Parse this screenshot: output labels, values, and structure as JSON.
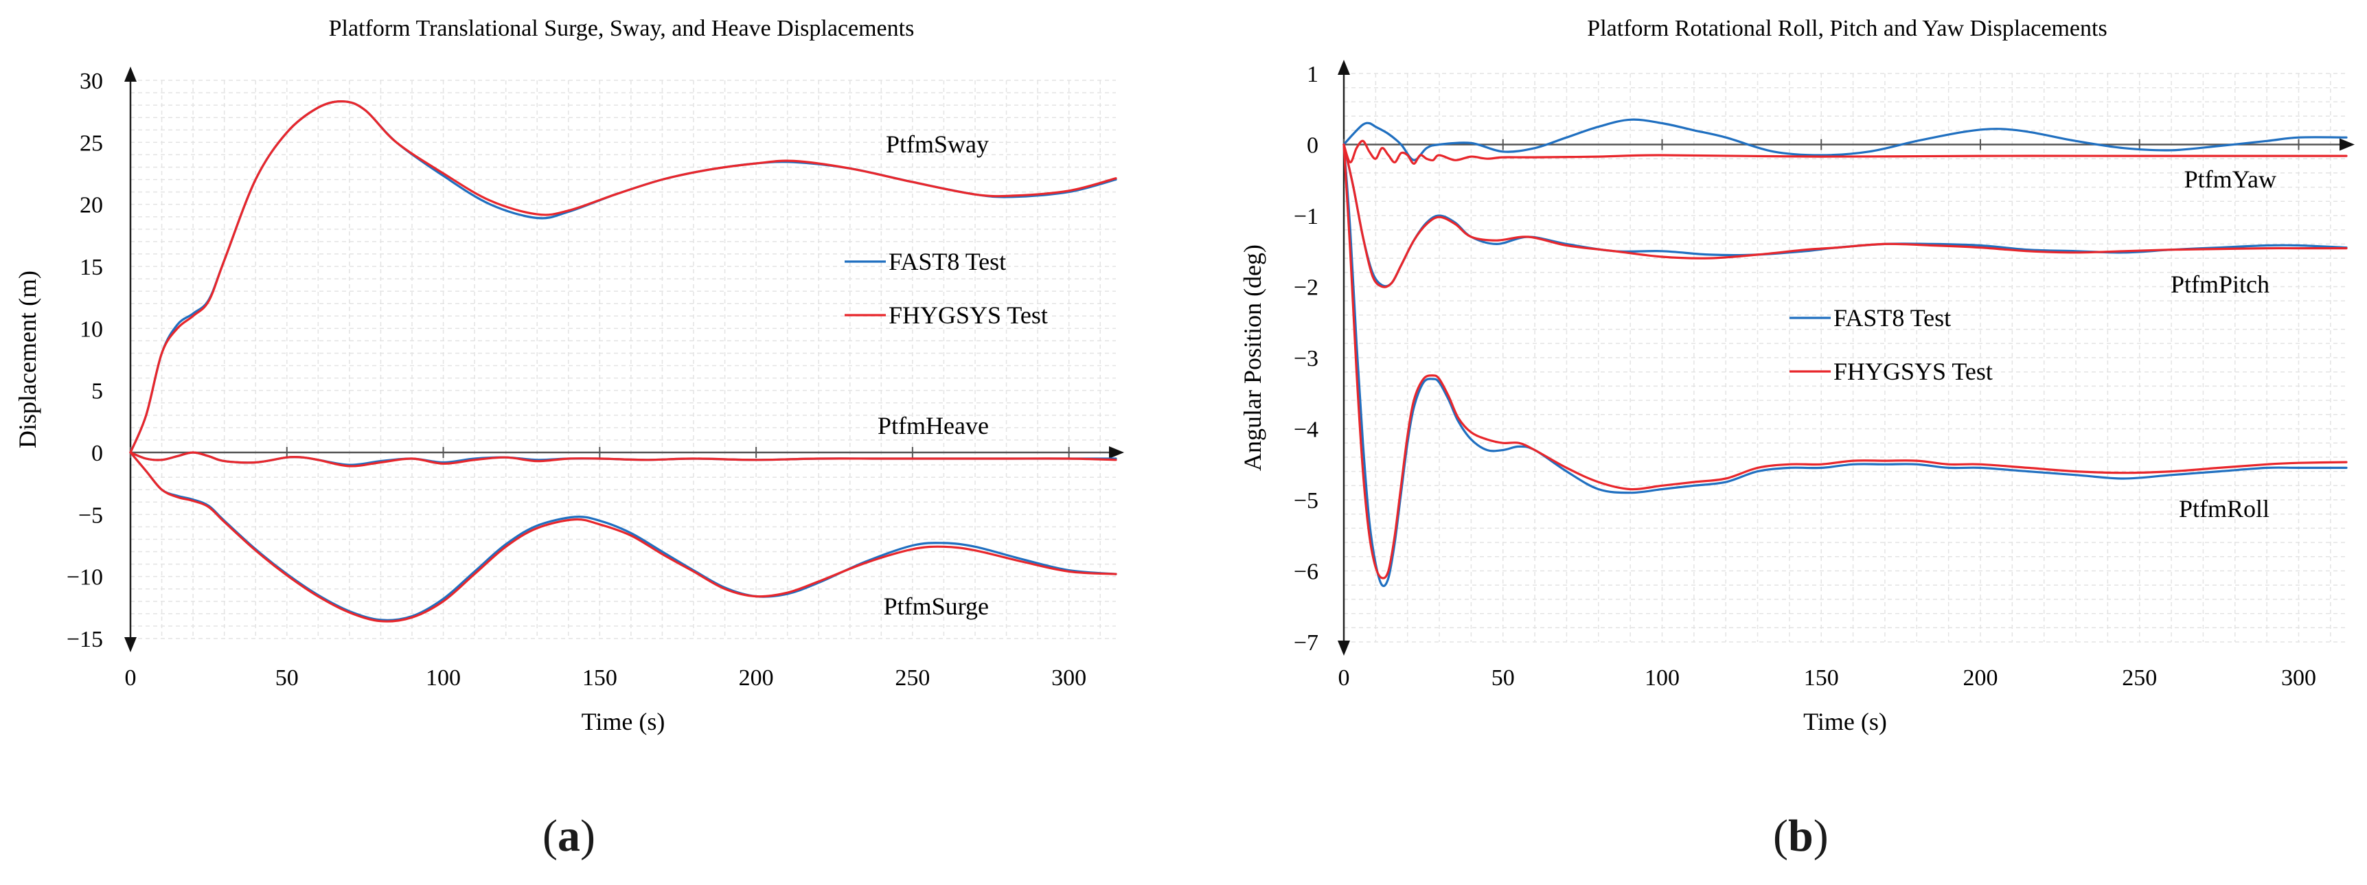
{
  "chart_data": [
    {
      "type": "line",
      "panel_label": "a",
      "title": "Platform Translational Surge, Sway, and Heave Displacements",
      "xlabel": "Time (s)",
      "ylabel": "Displacement (m)",
      "xlim": [
        0,
        315
      ],
      "ylim": [
        -15,
        30
      ],
      "xticks": [
        0,
        50,
        100,
        150,
        200,
        250,
        300
      ],
      "yticks": [
        -15,
        -10,
        -5,
        0,
        5,
        10,
        15,
        20,
        25,
        30
      ],
      "grid": true,
      "legend": {
        "placement": "center-right",
        "entries": [
          {
            "name": "FAST8 Test",
            "color": "#1f6fc0"
          },
          {
            "name": "FHYGSYS Test",
            "color": "#e8262b"
          }
        ]
      },
      "annotations": [
        "PtfmSway",
        "PtfmHeave",
        "PtfmSurge"
      ],
      "series": [
        {
          "name": "FAST8 Test",
          "label": "PtfmSway",
          "color": "#1f6fc0",
          "x": [
            0,
            5,
            10,
            15,
            20,
            25,
            30,
            40,
            50,
            60,
            68,
            75,
            85,
            100,
            115,
            130,
            140,
            155,
            170,
            185,
            200,
            212,
            230,
            250,
            270,
            282,
            300,
            315
          ],
          "y": [
            0,
            3.0,
            8.0,
            10.3,
            11.2,
            12.3,
            15.5,
            22.0,
            25.8,
            27.8,
            28.3,
            27.6,
            25.0,
            22.3,
            20.0,
            18.9,
            19.4,
            20.8,
            22.0,
            22.8,
            23.3,
            23.4,
            22.9,
            21.8,
            20.8,
            20.6,
            21.0,
            22.0
          ]
        },
        {
          "name": "FHYGSYS Test",
          "label": "PtfmSway",
          "color": "#e8262b",
          "x": [
            0,
            5,
            10,
            15,
            20,
            25,
            30,
            40,
            50,
            60,
            68,
            75,
            85,
            100,
            115,
            130,
            140,
            155,
            170,
            185,
            200,
            212,
            230,
            250,
            270,
            282,
            300,
            315
          ],
          "y": [
            0,
            3.0,
            8.0,
            10.0,
            11.0,
            12.2,
            15.5,
            22.0,
            25.8,
            27.8,
            28.3,
            27.6,
            25.0,
            22.5,
            20.3,
            19.2,
            19.5,
            20.8,
            22.0,
            22.8,
            23.3,
            23.5,
            22.9,
            21.8,
            20.8,
            20.7,
            21.1,
            22.1
          ]
        },
        {
          "name": "FAST8 Test",
          "label": "PtfmHeave",
          "color": "#1f6fc0",
          "x": [
            0,
            5,
            10,
            15,
            20,
            25,
            30,
            40,
            50,
            55,
            60,
            70,
            80,
            90,
            100,
            110,
            120,
            130,
            140,
            150,
            165,
            180,
            200,
            220,
            240,
            260,
            280,
            300,
            315
          ],
          "y": [
            0,
            -0.5,
            -0.6,
            -0.3,
            0.0,
            -0.3,
            -0.7,
            -0.8,
            -0.4,
            -0.4,
            -0.6,
            -1.0,
            -0.7,
            -0.5,
            -0.8,
            -0.5,
            -0.4,
            -0.6,
            -0.5,
            -0.5,
            -0.6,
            -0.5,
            -0.6,
            -0.5,
            -0.5,
            -0.5,
            -0.5,
            -0.5,
            -0.5
          ]
        },
        {
          "name": "FHYGSYS Test",
          "label": "PtfmHeave",
          "color": "#e8262b",
          "x": [
            0,
            5,
            10,
            15,
            20,
            25,
            30,
            40,
            50,
            55,
            60,
            70,
            80,
            90,
            100,
            110,
            120,
            130,
            140,
            150,
            165,
            180,
            200,
            220,
            240,
            260,
            280,
            300,
            315
          ],
          "y": [
            0,
            -0.5,
            -0.6,
            -0.3,
            0.0,
            -0.3,
            -0.7,
            -0.8,
            -0.4,
            -0.4,
            -0.6,
            -1.1,
            -0.8,
            -0.5,
            -0.9,
            -0.6,
            -0.4,
            -0.7,
            -0.5,
            -0.5,
            -0.6,
            -0.5,
            -0.6,
            -0.5,
            -0.5,
            -0.5,
            -0.5,
            -0.5,
            -0.6
          ]
        },
        {
          "name": "FAST8 Test",
          "label": "PtfmSurge",
          "color": "#1f6fc0",
          "x": [
            0,
            5,
            10,
            15,
            20,
            25,
            30,
            40,
            50,
            60,
            70,
            80,
            90,
            100,
            110,
            120,
            130,
            142,
            150,
            160,
            170,
            180,
            190,
            200,
            210,
            220,
            235,
            250,
            260,
            270,
            285,
            300,
            315
          ],
          "y": [
            0,
            -1.5,
            -3.0,
            -3.5,
            -3.8,
            -4.3,
            -5.5,
            -7.8,
            -9.8,
            -11.5,
            -12.8,
            -13.5,
            -13.2,
            -11.8,
            -9.6,
            -7.4,
            -5.9,
            -5.2,
            -5.5,
            -6.5,
            -8.0,
            -9.5,
            -10.9,
            -11.6,
            -11.4,
            -10.5,
            -8.8,
            -7.5,
            -7.3,
            -7.6,
            -8.6,
            -9.5,
            -9.8
          ]
        },
        {
          "name": "FHYGSYS Test",
          "label": "PtfmSurge",
          "color": "#e8262b",
          "x": [
            0,
            5,
            10,
            15,
            20,
            25,
            30,
            40,
            50,
            60,
            70,
            80,
            90,
            100,
            110,
            120,
            130,
            142,
            150,
            160,
            170,
            180,
            190,
            200,
            210,
            220,
            235,
            250,
            260,
            270,
            285,
            300,
            315
          ],
          "y": [
            0,
            -1.5,
            -3.0,
            -3.6,
            -3.9,
            -4.4,
            -5.6,
            -7.9,
            -9.9,
            -11.6,
            -12.9,
            -13.6,
            -13.3,
            -12.0,
            -9.8,
            -7.6,
            -6.1,
            -5.4,
            -5.8,
            -6.7,
            -8.2,
            -9.6,
            -11.0,
            -11.6,
            -11.3,
            -10.4,
            -8.9,
            -7.8,
            -7.6,
            -7.9,
            -8.8,
            -9.6,
            -9.8
          ]
        }
      ]
    },
    {
      "type": "line",
      "panel_label": "b",
      "title": "Platform Rotational Roll, Pitch and Yaw Displacements",
      "xlabel": "Time (s)",
      "ylabel": "Angular Position (deg)",
      "xlim": [
        0,
        315
      ],
      "ylim": [
        -7,
        1
      ],
      "xticks": [
        0,
        50,
        100,
        150,
        200,
        250,
        300
      ],
      "yticks": [
        -7,
        -6,
        -5,
        -4,
        -3,
        -2,
        -1,
        0,
        1
      ],
      "grid": true,
      "legend": {
        "placement": "center",
        "entries": [
          {
            "name": "FAST8 Test",
            "color": "#1f6fc0"
          },
          {
            "name": "FHYGSYS Test",
            "color": "#e8262b"
          }
        ]
      },
      "annotations": [
        "PtfmYaw",
        "PtfmPitch",
        "PtfmRoll"
      ],
      "series": [
        {
          "name": "FAST8 Test",
          "label": "PtfmYaw",
          "color": "#1f6fc0",
          "x": [
            0,
            3,
            6,
            8,
            10,
            14,
            18,
            22,
            26,
            30,
            40,
            50,
            60,
            70,
            80,
            90,
            100,
            110,
            120,
            135,
            150,
            165,
            180,
            195,
            205,
            215,
            230,
            245,
            260,
            275,
            290,
            300,
            315
          ],
          "y": [
            0,
            0.15,
            0.28,
            0.3,
            0.25,
            0.15,
            0.0,
            -0.22,
            -0.05,
            0.0,
            0.02,
            -0.1,
            -0.05,
            0.1,
            0.25,
            0.35,
            0.3,
            0.2,
            0.1,
            -0.1,
            -0.15,
            -0.1,
            0.05,
            0.18,
            0.22,
            0.18,
            0.05,
            -0.05,
            -0.08,
            -0.02,
            0.05,
            0.1,
            0.1
          ]
        },
        {
          "name": "FHYGSYS Test",
          "label": "PtfmYaw",
          "color": "#e8262b",
          "x": [
            0,
            2,
            4,
            6,
            8,
            10,
            12,
            14,
            16,
            18,
            20,
            22,
            24,
            26,
            28,
            30,
            35,
            40,
            45,
            50,
            60,
            80,
            100,
            150,
            200,
            250,
            315
          ],
          "y": [
            0,
            -0.25,
            -0.05,
            0.05,
            -0.1,
            -0.2,
            -0.05,
            -0.15,
            -0.25,
            -0.12,
            -0.15,
            -0.27,
            -0.15,
            -0.2,
            -0.22,
            -0.15,
            -0.22,
            -0.17,
            -0.2,
            -0.18,
            -0.18,
            -0.17,
            -0.15,
            -0.17,
            -0.16,
            -0.16,
            -0.16
          ]
        },
        {
          "name": "FAST8 Test",
          "label": "PtfmPitch",
          "color": "#1f6fc0",
          "x": [
            0,
            3,
            6,
            9,
            12,
            15,
            18,
            22,
            26,
            30,
            35,
            40,
            48,
            58,
            70,
            85,
            100,
            115,
            130,
            145,
            155,
            170,
            185,
            200,
            215,
            230,
            245,
            260,
            275,
            290,
            300,
            315
          ],
          "y": [
            0,
            -0.6,
            -1.3,
            -1.8,
            -1.98,
            -1.95,
            -1.7,
            -1.35,
            -1.1,
            -1.0,
            -1.1,
            -1.3,
            -1.4,
            -1.3,
            -1.4,
            -1.5,
            -1.5,
            -1.55,
            -1.55,
            -1.5,
            -1.45,
            -1.4,
            -1.4,
            -1.42,
            -1.48,
            -1.5,
            -1.52,
            -1.48,
            -1.45,
            -1.42,
            -1.42,
            -1.45
          ]
        },
        {
          "name": "FHYGSYS Test",
          "label": "PtfmPitch",
          "color": "#e8262b",
          "x": [
            0,
            3,
            6,
            9,
            12,
            15,
            18,
            22,
            26,
            30,
            35,
            40,
            48,
            58,
            70,
            85,
            100,
            115,
            130,
            145,
            155,
            170,
            185,
            200,
            215,
            230,
            245,
            260,
            275,
            290,
            300,
            315
          ],
          "y": [
            0,
            -0.6,
            -1.3,
            -1.85,
            -2.0,
            -1.95,
            -1.7,
            -1.35,
            -1.12,
            -1.02,
            -1.12,
            -1.3,
            -1.35,
            -1.3,
            -1.42,
            -1.5,
            -1.58,
            -1.6,
            -1.55,
            -1.48,
            -1.45,
            -1.4,
            -1.42,
            -1.45,
            -1.5,
            -1.52,
            -1.5,
            -1.48,
            -1.47,
            -1.46,
            -1.46,
            -1.46
          ]
        },
        {
          "name": "FAST8 Test",
          "label": "PtfmRoll",
          "color": "#1f6fc0",
          "x": [
            0,
            2,
            4,
            6,
            8,
            10,
            12,
            14,
            16,
            18,
            20,
            22,
            25,
            28,
            30,
            33,
            36,
            40,
            45,
            50,
            55,
            60,
            70,
            80,
            90,
            100,
            110,
            120,
            130,
            140,
            150,
            160,
            170,
            180,
            190,
            200,
            215,
            230,
            245,
            260,
            275,
            290,
            300,
            315
          ],
          "y": [
            0,
            -1.2,
            -2.8,
            -4.2,
            -5.3,
            -5.9,
            -6.2,
            -6.1,
            -5.6,
            -4.9,
            -4.2,
            -3.7,
            -3.35,
            -3.3,
            -3.35,
            -3.6,
            -3.9,
            -4.15,
            -4.3,
            -4.3,
            -4.25,
            -4.3,
            -4.6,
            -4.85,
            -4.9,
            -4.85,
            -4.8,
            -4.75,
            -4.6,
            -4.55,
            -4.55,
            -4.5,
            -4.5,
            -4.5,
            -4.55,
            -4.55,
            -4.6,
            -4.65,
            -4.7,
            -4.65,
            -4.6,
            -4.55,
            -4.55,
            -4.55
          ]
        },
        {
          "name": "FHYGSYS Test",
          "label": "PtfmRoll",
          "color": "#e8262b",
          "x": [
            0,
            2,
            4,
            6,
            8,
            10,
            12,
            14,
            16,
            18,
            20,
            22,
            25,
            28,
            30,
            33,
            36,
            40,
            45,
            50,
            55,
            60,
            70,
            80,
            90,
            100,
            110,
            120,
            130,
            140,
            150,
            160,
            170,
            180,
            190,
            200,
            215,
            230,
            245,
            260,
            275,
            290,
            300,
            315
          ],
          "y": [
            0,
            -1.5,
            -3.2,
            -4.6,
            -5.5,
            -5.95,
            -6.1,
            -6.0,
            -5.5,
            -4.8,
            -4.1,
            -3.6,
            -3.3,
            -3.25,
            -3.3,
            -3.55,
            -3.85,
            -4.05,
            -4.15,
            -4.2,
            -4.2,
            -4.3,
            -4.55,
            -4.75,
            -4.85,
            -4.8,
            -4.75,
            -4.7,
            -4.55,
            -4.5,
            -4.5,
            -4.45,
            -4.45,
            -4.45,
            -4.5,
            -4.5,
            -4.55,
            -4.6,
            -4.62,
            -4.6,
            -4.55,
            -4.5,
            -4.48,
            -4.47
          ]
        }
      ]
    }
  ]
}
